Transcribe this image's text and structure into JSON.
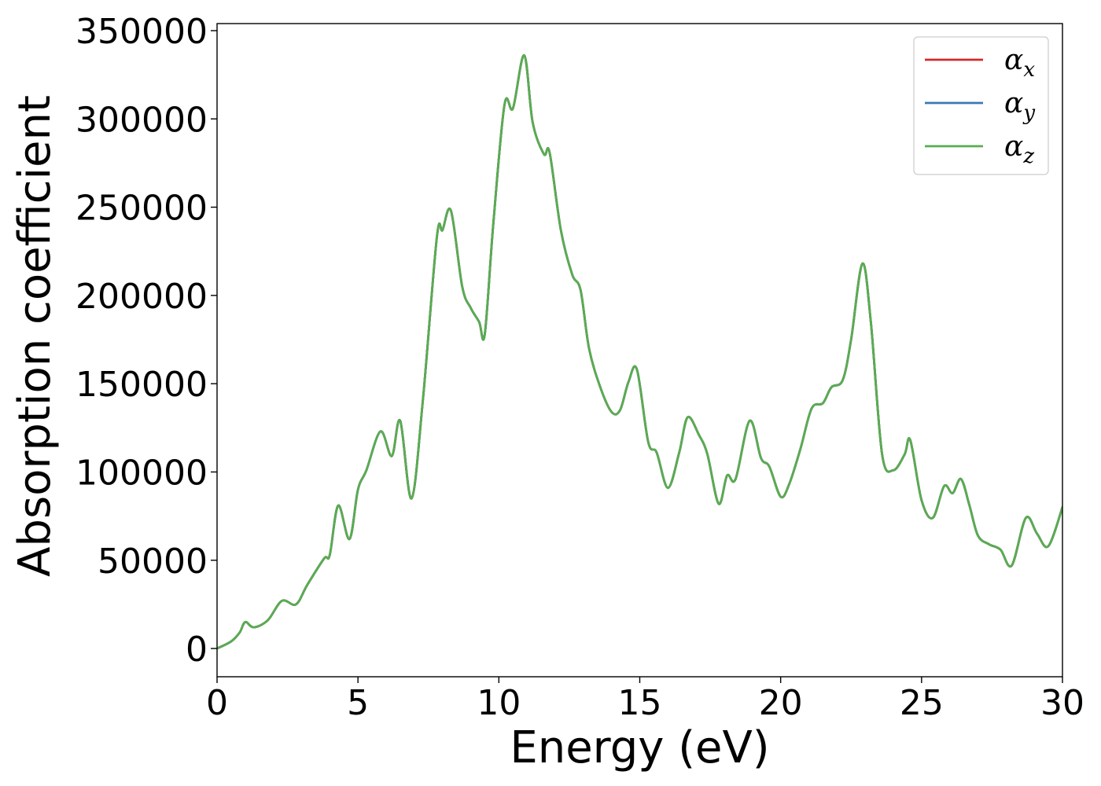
{
  "chart_data": {
    "type": "line",
    "title": "",
    "xlabel": "Energy (eV)",
    "ylabel": "Absorption coefficient",
    "xlim": [
      0,
      30
    ],
    "ylim": [
      -16000,
      354000
    ],
    "xticks": [
      0,
      5,
      10,
      15,
      20,
      25,
      30
    ],
    "yticks": [
      0,
      50000,
      100000,
      150000,
      200000,
      250000,
      300000,
      350000
    ],
    "grid": false,
    "legend_position": "top-right",
    "series": [
      {
        "name": "αx",
        "legend_symbol": "α",
        "legend_subscript": "x",
        "color": "#d62728",
        "x": [
          0,
          0.5,
          0.8,
          1.0,
          1.3,
          1.8,
          2.3,
          2.8,
          3.2,
          3.8,
          4.0,
          4.3,
          4.7,
          5.0,
          5.3,
          5.8,
          6.2,
          6.5,
          6.9,
          7.3,
          7.8,
          8.0,
          8.3,
          8.7,
          9.0,
          9.3,
          9.5,
          9.8,
          10.2,
          10.5,
          10.9,
          11.2,
          11.6,
          11.8,
          12.2,
          12.6,
          12.9,
          13.2,
          13.6,
          14.0,
          14.3,
          14.6,
          14.9,
          15.3,
          15.6,
          16.0,
          16.4,
          16.7,
          17.1,
          17.4,
          17.8,
          18.1,
          18.4,
          18.9,
          19.3,
          19.6,
          20.0,
          20.3,
          20.7,
          21.1,
          21.5,
          21.8,
          22.2,
          22.5,
          22.9,
          23.2,
          23.6,
          24.0,
          24.4,
          24.6,
          25.0,
          25.4,
          25.8,
          26.1,
          26.4,
          26.7,
          27.0,
          27.4,
          27.8,
          28.2,
          28.7,
          29.1,
          29.5,
          30.0
        ],
        "y": [
          0,
          4000,
          9000,
          15000,
          12000,
          16000,
          27000,
          25000,
          36000,
          51000,
          53000,
          81000,
          62000,
          90000,
          101000,
          123000,
          109000,
          129000,
          85000,
          140000,
          233000,
          237000,
          248000,
          205000,
          193000,
          185000,
          178000,
          240000,
          308000,
          306000,
          336000,
          298000,
          280000,
          281000,
          237000,
          212000,
          203000,
          170000,
          148000,
          134000,
          135000,
          151000,
          158000,
          117000,
          111000,
          91000,
          111000,
          131000,
          121000,
          110000,
          82000,
          98000,
          96000,
          129000,
          108000,
          103000,
          86000,
          93000,
          113000,
          136000,
          139000,
          148000,
          152000,
          175000,
          218000,
          185000,
          110000,
          101000,
          110000,
          118000,
          84000,
          74000,
          92000,
          88000,
          96000,
          81000,
          64000,
          59000,
          56000,
          47000,
          74000,
          65000,
          58000,
          80000
        ]
      },
      {
        "name": "αy",
        "legend_symbol": "α",
        "legend_subscript": "y",
        "color": "#3a78b4",
        "x": [
          0,
          0.5,
          0.8,
          1.0,
          1.3,
          1.8,
          2.3,
          2.8,
          3.2,
          3.8,
          4.0,
          4.3,
          4.7,
          5.0,
          5.3,
          5.8,
          6.2,
          6.5,
          6.9,
          7.3,
          7.8,
          8.0,
          8.3,
          8.7,
          9.0,
          9.3,
          9.5,
          9.8,
          10.2,
          10.5,
          10.9,
          11.2,
          11.6,
          11.8,
          12.2,
          12.6,
          12.9,
          13.2,
          13.6,
          14.0,
          14.3,
          14.6,
          14.9,
          15.3,
          15.6,
          16.0,
          16.4,
          16.7,
          17.1,
          17.4,
          17.8,
          18.1,
          18.4,
          18.9,
          19.3,
          19.6,
          20.0,
          20.3,
          20.7,
          21.1,
          21.5,
          21.8,
          22.2,
          22.5,
          22.9,
          23.2,
          23.6,
          24.0,
          24.4,
          24.6,
          25.0,
          25.4,
          25.8,
          26.1,
          26.4,
          26.7,
          27.0,
          27.4,
          27.8,
          28.2,
          28.7,
          29.1,
          29.5,
          30.0
        ],
        "y": [
          0,
          4000,
          9000,
          15000,
          12000,
          16000,
          27000,
          25000,
          36000,
          51000,
          53000,
          81000,
          62000,
          90000,
          101000,
          123000,
          109000,
          129000,
          85000,
          140000,
          233000,
          237000,
          248000,
          205000,
          193000,
          185000,
          178000,
          240000,
          308000,
          306000,
          336000,
          298000,
          280000,
          281000,
          237000,
          212000,
          203000,
          170000,
          148000,
          134000,
          135000,
          151000,
          158000,
          117000,
          111000,
          91000,
          111000,
          131000,
          121000,
          110000,
          82000,
          98000,
          96000,
          129000,
          108000,
          103000,
          86000,
          93000,
          113000,
          136000,
          139000,
          148000,
          152000,
          175000,
          218000,
          185000,
          110000,
          101000,
          110000,
          118000,
          84000,
          74000,
          92000,
          88000,
          96000,
          81000,
          64000,
          59000,
          56000,
          47000,
          74000,
          65000,
          58000,
          80000
        ]
      },
      {
        "name": "αz",
        "legend_symbol": "α",
        "legend_subscript": "z",
        "color": "#59ac50",
        "x": [
          0,
          0.5,
          0.8,
          1.0,
          1.3,
          1.8,
          2.3,
          2.8,
          3.2,
          3.8,
          4.0,
          4.3,
          4.7,
          5.0,
          5.3,
          5.8,
          6.2,
          6.5,
          6.9,
          7.3,
          7.8,
          8.0,
          8.3,
          8.7,
          9.0,
          9.3,
          9.5,
          9.8,
          10.2,
          10.5,
          10.9,
          11.2,
          11.6,
          11.8,
          12.2,
          12.6,
          12.9,
          13.2,
          13.6,
          14.0,
          14.3,
          14.6,
          14.9,
          15.3,
          15.6,
          16.0,
          16.4,
          16.7,
          17.1,
          17.4,
          17.8,
          18.1,
          18.4,
          18.9,
          19.3,
          19.6,
          20.0,
          20.3,
          20.7,
          21.1,
          21.5,
          21.8,
          22.2,
          22.5,
          22.9,
          23.2,
          23.6,
          24.0,
          24.4,
          24.6,
          25.0,
          25.4,
          25.8,
          26.1,
          26.4,
          26.7,
          27.0,
          27.4,
          27.8,
          28.2,
          28.7,
          29.1,
          29.5,
          30.0
        ],
        "y": [
          0,
          4000,
          9000,
          15000,
          12000,
          16000,
          27000,
          25000,
          36000,
          51000,
          53000,
          81000,
          62000,
          90000,
          101000,
          123000,
          109000,
          129000,
          85000,
          140000,
          233000,
          237000,
          248000,
          205000,
          193000,
          185000,
          178000,
          240000,
          308000,
          306000,
          336000,
          298000,
          280000,
          281000,
          237000,
          212000,
          203000,
          170000,
          148000,
          134000,
          135000,
          151000,
          158000,
          117000,
          111000,
          91000,
          111000,
          131000,
          121000,
          110000,
          82000,
          98000,
          96000,
          129000,
          108000,
          103000,
          86000,
          93000,
          113000,
          136000,
          139000,
          148000,
          152000,
          175000,
          218000,
          185000,
          110000,
          101000,
          110000,
          118000,
          84000,
          74000,
          92000,
          88000,
          96000,
          81000,
          64000,
          59000,
          56000,
          47000,
          74000,
          65000,
          58000,
          80000
        ]
      }
    ]
  }
}
